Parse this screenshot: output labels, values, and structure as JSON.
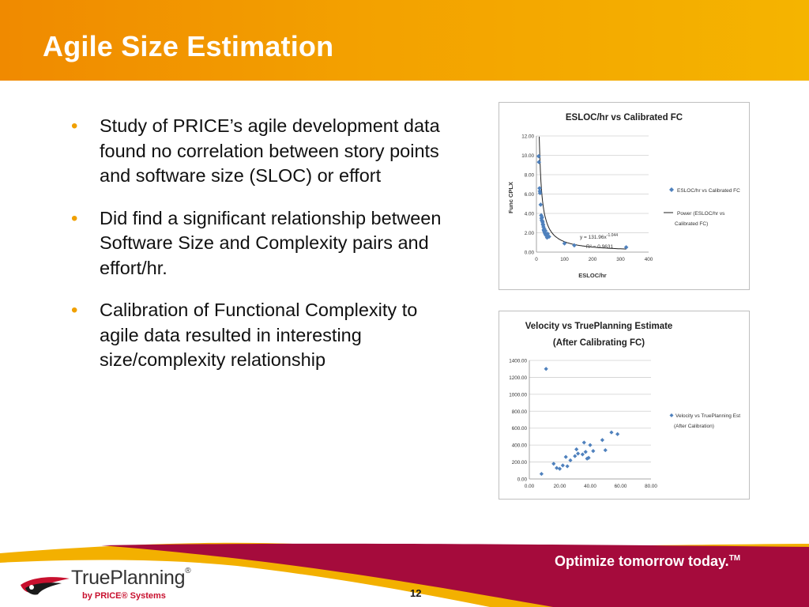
{
  "slide": {
    "title": "Agile Size Estimation",
    "bullets": [
      "Study of PRICE’s agile development data found no correlation between story points and software size (SLOC) or effort",
      "Did find a significant relationship between Software Size and Complexity pairs and effort/hr.",
      "Calibration of Functional Complexity to agile data resulted in interesting size/complexity relationship"
    ],
    "tagline": "Optimize tomorrow today.",
    "tagline_tm": "TM",
    "page_number": "12",
    "logo": {
      "name": "TruePlanning",
      "reg": "®",
      "sub": "by PRICE® Systems"
    },
    "colors": {
      "header": "#f3a100",
      "footer_red": "#a50b3c",
      "footer_gold": "#f3b000",
      "marker": "#4f81bd"
    }
  },
  "chart_data": [
    {
      "type": "scatter",
      "title": "ESLOC/hr  vs  Calibrated FC",
      "xlabel": "ESLOC/hr",
      "ylabel": "Func CPLX",
      "xlim": [
        0,
        400
      ],
      "ylim": [
        0,
        12
      ],
      "xticks": [
        "0",
        "100",
        "200",
        "300",
        "400"
      ],
      "yticks": [
        "0.00",
        "2.00",
        "4.00",
        "6.00",
        "8.00",
        "10.00",
        "12.00"
      ],
      "grid": true,
      "legend_position": "right",
      "series": [
        {
          "name": "ESLOC/hr  vs  Calibrated FC",
          "x": [
            8,
            9,
            11,
            12,
            13,
            15,
            17,
            18,
            19,
            20,
            21,
            22,
            23,
            24,
            25,
            26,
            27,
            28,
            29,
            30,
            31,
            32,
            33,
            35,
            38,
            40,
            45,
            100,
            135,
            320
          ],
          "y": [
            9.9,
            9.3,
            6.6,
            6.3,
            6.1,
            4.9,
            3.8,
            3.5,
            3.3,
            3.6,
            3.2,
            3.1,
            2.9,
            2.8,
            2.6,
            2.3,
            2.2,
            2.4,
            2.1,
            2.0,
            1.9,
            2.2,
            1.8,
            1.7,
            1.5,
            1.9,
            1.6,
            0.9,
            0.7,
            0.5
          ]
        },
        {
          "name": "Power (ESLOC/hr  vs  Calibrated FC)",
          "fit": "power",
          "coef": 131.96,
          "exponent": -1.044
        }
      ],
      "annotations": {
        "equation": "y = 131.96x",
        "exponent": "-1.044",
        "r2": "R² = 0.9631"
      }
    },
    {
      "type": "scatter",
      "title": "Velocity vs TruePlanning Estimate",
      "subtitle": "(After Calibrating FC)",
      "xlim": [
        0,
        80
      ],
      "ylim": [
        0,
        1400
      ],
      "xticks": [
        "0.00",
        "20.00",
        "40.00",
        "60.00",
        "80.00"
      ],
      "yticks": [
        "0.00",
        "200.00",
        "400.00",
        "600.00",
        "800.00",
        "1000.00",
        "1200.00",
        "1400.00"
      ],
      "grid": true,
      "legend_position": "right",
      "series": [
        {
          "name": "Velocity vs TruePlanning Est (After Calibration)",
          "x": [
            8,
            11,
            16,
            18,
            20,
            22,
            24,
            25,
            27,
            30,
            31,
            32,
            35,
            36,
            37,
            38,
            39,
            40,
            42,
            48,
            50,
            54,
            58
          ],
          "y": [
            60,
            1300,
            180,
            130,
            120,
            160,
            260,
            150,
            220,
            270,
            350,
            300,
            290,
            430,
            320,
            240,
            250,
            400,
            330,
            460,
            340,
            550,
            530
          ]
        }
      ]
    }
  ]
}
